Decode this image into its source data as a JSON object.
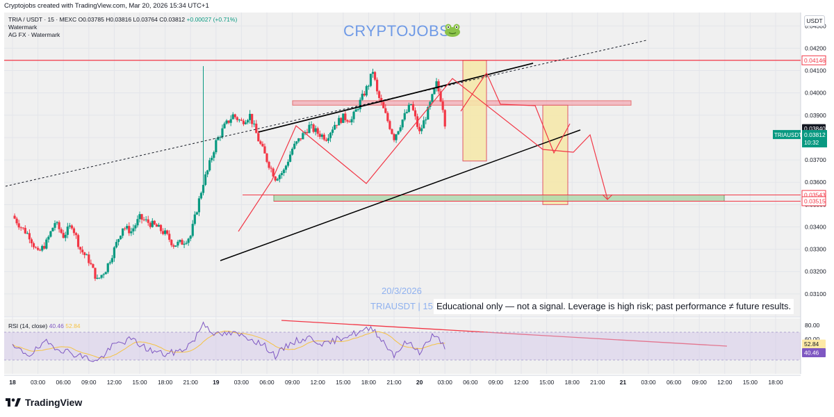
{
  "header": {
    "credit": "Cryptojobs created with TradingView.com, Mar 20, 2026 15:34 UTC+1",
    "symbol": "TRIA / USDT · 15 · MEXC",
    "open": "O0.03785",
    "high": "H0.03816",
    "low": "L0.03764",
    "close": "C0.03812",
    "change": "+0.00027 (+0.71%)",
    "indicator_1": "Watermark",
    "indicator_2": "AG FX · Watermark"
  },
  "watermark": {
    "brand": "CRYPTOJOBS",
    "brand_icon": "frog-icon",
    "date": "20/3/2026",
    "pair": "TRIAUSDT | 15M"
  },
  "disclaimer": "Educational only — not a signal. Leverage is high risk; past performance ≠ future results.",
  "currency_button": "USDT",
  "price_axis": {
    "ticks": [
      "0.04300",
      "0.04200",
      "0.04100",
      "0.04000",
      "0.03900",
      "0.03800",
      "0.03700",
      "0.03600",
      "0.03500",
      "0.03400",
      "0.03300",
      "0.03200",
      "0.03100"
    ],
    "labels": [
      {
        "text": "0.04146",
        "value": 0.04146,
        "color": "#f23645"
      },
      {
        "text": "0.03840",
        "value": 0.0384,
        "color": "#131722"
      },
      {
        "text": "0.03543",
        "value": 0.03543,
        "color": "#f23645"
      },
      {
        "text": "0.03515",
        "value": 0.03515,
        "color": "#f23645"
      }
    ],
    "last_price": {
      "symbol": "TRIAUSDT",
      "price": "0.03812",
      "countdown": "10:32",
      "value": 0.03812,
      "color": "#089981"
    }
  },
  "time_axis": [
    "18",
    "03:00",
    "06:00",
    "09:00",
    "12:00",
    "15:00",
    "18:00",
    "21:00",
    "19",
    "03:00",
    "06:00",
    "09:00",
    "12:00",
    "15:00",
    "18:00",
    "21:00",
    "20",
    "03:00",
    "06:00",
    "09:00",
    "12:00",
    "15:00",
    "18:00",
    "21:00",
    "21",
    "03:00",
    "06:00",
    "09:00",
    "12:00",
    "15:00",
    "18:00"
  ],
  "rsi": {
    "label": "RSI (14, close)",
    "value": "40.46",
    "ma_value": "52.84",
    "axis": [
      "80.00",
      "60.00"
    ],
    "current": "40.46",
    "current_ma": "52.84"
  },
  "chart_data": {
    "type": "candlestick",
    "symbol": "TRIA / USDT",
    "timeframe": "15",
    "exchange": "MEXC",
    "ylim": [
      0.03,
      0.0436
    ],
    "x_start": "18 00:00",
    "x_end": "21 18:00",
    "close_path": [
      {
        "t": 0.0,
        "p": 0.0345
      },
      {
        "t": 1.0,
        "p": 0.034
      },
      {
        "t": 2.0,
        "p": 0.0336
      },
      {
        "t": 3.0,
        "p": 0.0328
      },
      {
        "t": 4.0,
        "p": 0.0333
      },
      {
        "t": 5.0,
        "p": 0.0342
      },
      {
        "t": 6.0,
        "p": 0.0336
      },
      {
        "t": 7.0,
        "p": 0.0341
      },
      {
        "t": 8.0,
        "p": 0.033
      },
      {
        "t": 9.0,
        "p": 0.0325
      },
      {
        "t": 10.0,
        "p": 0.0316
      },
      {
        "t": 11.0,
        "p": 0.0321
      },
      {
        "t": 12.0,
        "p": 0.033
      },
      {
        "t": 13.0,
        "p": 0.034
      },
      {
        "t": 14.0,
        "p": 0.0338
      },
      {
        "t": 15.0,
        "p": 0.0344
      },
      {
        "t": 16.0,
        "p": 0.0342
      },
      {
        "t": 17.0,
        "p": 0.034
      },
      {
        "t": 18.0,
        "p": 0.0337
      },
      {
        "t": 19.0,
        "p": 0.0332
      },
      {
        "t": 20.0,
        "p": 0.0333
      },
      {
        "t": 21.0,
        "p": 0.0336
      },
      {
        "t": 22.0,
        "p": 0.0352
      },
      {
        "t": 22.5,
        "p": 0.036
      },
      {
        "t": 23.0,
        "p": 0.0365
      },
      {
        "t": 24.0,
        "p": 0.0378
      },
      {
        "t": 25.0,
        "p": 0.0385
      },
      {
        "t": 26.0,
        "p": 0.039
      },
      {
        "t": 27.0,
        "p": 0.0387
      },
      {
        "t": 28.0,
        "p": 0.039
      },
      {
        "t": 29.0,
        "p": 0.0379
      },
      {
        "t": 30.0,
        "p": 0.037
      },
      {
        "t": 31.0,
        "p": 0.0362
      },
      {
        "t": 32.0,
        "p": 0.0365
      },
      {
        "t": 33.0,
        "p": 0.0375
      },
      {
        "t": 34.0,
        "p": 0.038
      },
      {
        "t": 35.0,
        "p": 0.0385
      },
      {
        "t": 36.0,
        "p": 0.0382
      },
      {
        "t": 37.0,
        "p": 0.038
      },
      {
        "t": 38.0,
        "p": 0.0386
      },
      {
        "t": 39.0,
        "p": 0.0389
      },
      {
        "t": 40.0,
        "p": 0.0388
      },
      {
        "t": 41.0,
        "p": 0.0396
      },
      {
        "t": 42.0,
        "p": 0.0404
      },
      {
        "t": 42.5,
        "p": 0.041
      },
      {
        "t": 43.0,
        "p": 0.04
      },
      {
        "t": 44.0,
        "p": 0.039
      },
      {
        "t": 45.0,
        "p": 0.038
      },
      {
        "t": 46.0,
        "p": 0.0388
      },
      {
        "t": 47.0,
        "p": 0.0395
      },
      {
        "t": 48.0,
        "p": 0.0382
      },
      {
        "t": 49.0,
        "p": 0.0392
      },
      {
        "t": 50.0,
        "p": 0.0404
      },
      {
        "t": 50.7,
        "p": 0.0395
      },
      {
        "t": 51.2,
        "p": 0.03812
      }
    ],
    "drawings": {
      "resistance_line": 0.04146,
      "support_zone": [
        0.03515,
        0.03543
      ],
      "target_arrow_price": 0.03543
    },
    "rsi_series": {
      "name": "RSI (14, close)",
      "ylim": [
        10,
        90
      ],
      "points": [
        {
          "t": 0,
          "v": 48
        },
        {
          "t": 2,
          "v": 38
        },
        {
          "t": 4,
          "v": 55
        },
        {
          "t": 6,
          "v": 44
        },
        {
          "t": 8,
          "v": 36
        },
        {
          "t": 10,
          "v": 28
        },
        {
          "t": 12,
          "v": 52
        },
        {
          "t": 14,
          "v": 60
        },
        {
          "t": 16,
          "v": 45
        },
        {
          "t": 18,
          "v": 38
        },
        {
          "t": 20,
          "v": 44
        },
        {
          "t": 21.5,
          "v": 60
        },
        {
          "t": 22.5,
          "v": 84
        },
        {
          "t": 24,
          "v": 66
        },
        {
          "t": 26,
          "v": 68
        },
        {
          "t": 28,
          "v": 62
        },
        {
          "t": 30,
          "v": 48
        },
        {
          "t": 31,
          "v": 36
        },
        {
          "t": 33,
          "v": 56
        },
        {
          "t": 35,
          "v": 62
        },
        {
          "t": 37,
          "v": 52
        },
        {
          "t": 39,
          "v": 64
        },
        {
          "t": 41,
          "v": 70
        },
        {
          "t": 42.5,
          "v": 76
        },
        {
          "t": 44,
          "v": 52
        },
        {
          "t": 45,
          "v": 38
        },
        {
          "t": 46.5,
          "v": 56
        },
        {
          "t": 48,
          "v": 42
        },
        {
          "t": 49.5,
          "v": 64
        },
        {
          "t": 50.5,
          "v": 58
        },
        {
          "t": 51.2,
          "v": 40.46
        }
      ],
      "ma_value": 52.84,
      "current": 40.46
    }
  }
}
